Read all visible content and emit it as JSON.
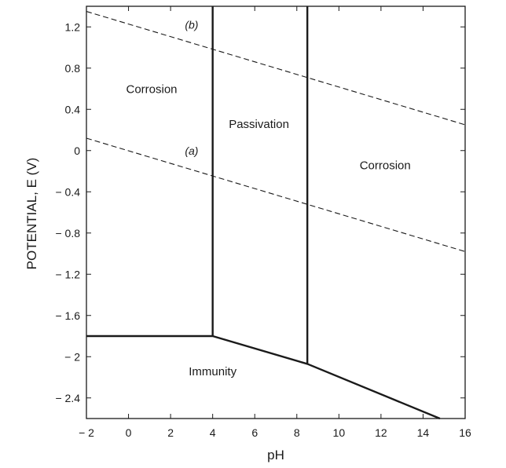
{
  "chart_data": {
    "type": "line",
    "title": "",
    "xlabel": "pH",
    "ylabel": "POTENTIAL, E (V)",
    "xlim": [
      -2,
      16
    ],
    "ylim": [
      -2.6,
      1.4
    ],
    "x_ticks": [
      -2,
      0,
      2,
      4,
      6,
      8,
      10,
      12,
      14,
      16
    ],
    "x_tick_labels": [
      "− 2",
      "0",
      "2",
      "4",
      "6",
      "8",
      "10",
      "12",
      "14",
      "16"
    ],
    "y_ticks": [
      1.2,
      0.8,
      0.4,
      0,
      -0.4,
      -0.8,
      -1.2,
      -1.6,
      -2,
      -2.4
    ],
    "y_tick_labels": [
      "1.2",
      "0.8",
      "0.4",
      "0",
      "− 0.4",
      "− 0.8",
      "− 1.2",
      "− 1.6",
      "− 2",
      "− 2.4"
    ],
    "grid": false,
    "series": [
      {
        "name": "line-a",
        "style": "dashed",
        "x": [
          -2,
          16
        ],
        "y": [
          0.12,
          -0.98
        ]
      },
      {
        "name": "line-b",
        "style": "dashed",
        "x": [
          -2,
          16
        ],
        "y": [
          1.35,
          0.25
        ]
      },
      {
        "name": "immunity-boundary",
        "style": "solid",
        "x": [
          -2,
          4,
          8.5,
          14.8
        ],
        "y": [
          -1.8,
          -1.8,
          -2.07,
          -2.6
        ]
      },
      {
        "name": "passivation-left-boundary",
        "style": "solid",
        "x": [
          4,
          4
        ],
        "y": [
          -1.8,
          1.4
        ]
      },
      {
        "name": "passivation-right-boundary",
        "style": "solid",
        "x": [
          8.5,
          8.5
        ],
        "y": [
          -2.07,
          1.4
        ]
      }
    ],
    "line_labels": [
      {
        "text": "(b)",
        "x": 3.0,
        "y": 1.22
      },
      {
        "text": "(a)",
        "x": 3.0,
        "y": 0.0
      }
    ],
    "regions": [
      {
        "label": "Corrosion",
        "x": 1.1,
        "y": 0.56
      },
      {
        "label": "Passivation",
        "x": 6.2,
        "y": 0.22
      },
      {
        "label": "Corrosion",
        "x": 12.2,
        "y": -0.18
      },
      {
        "label": "Immunity",
        "x": 4.0,
        "y": -2.18
      }
    ]
  }
}
